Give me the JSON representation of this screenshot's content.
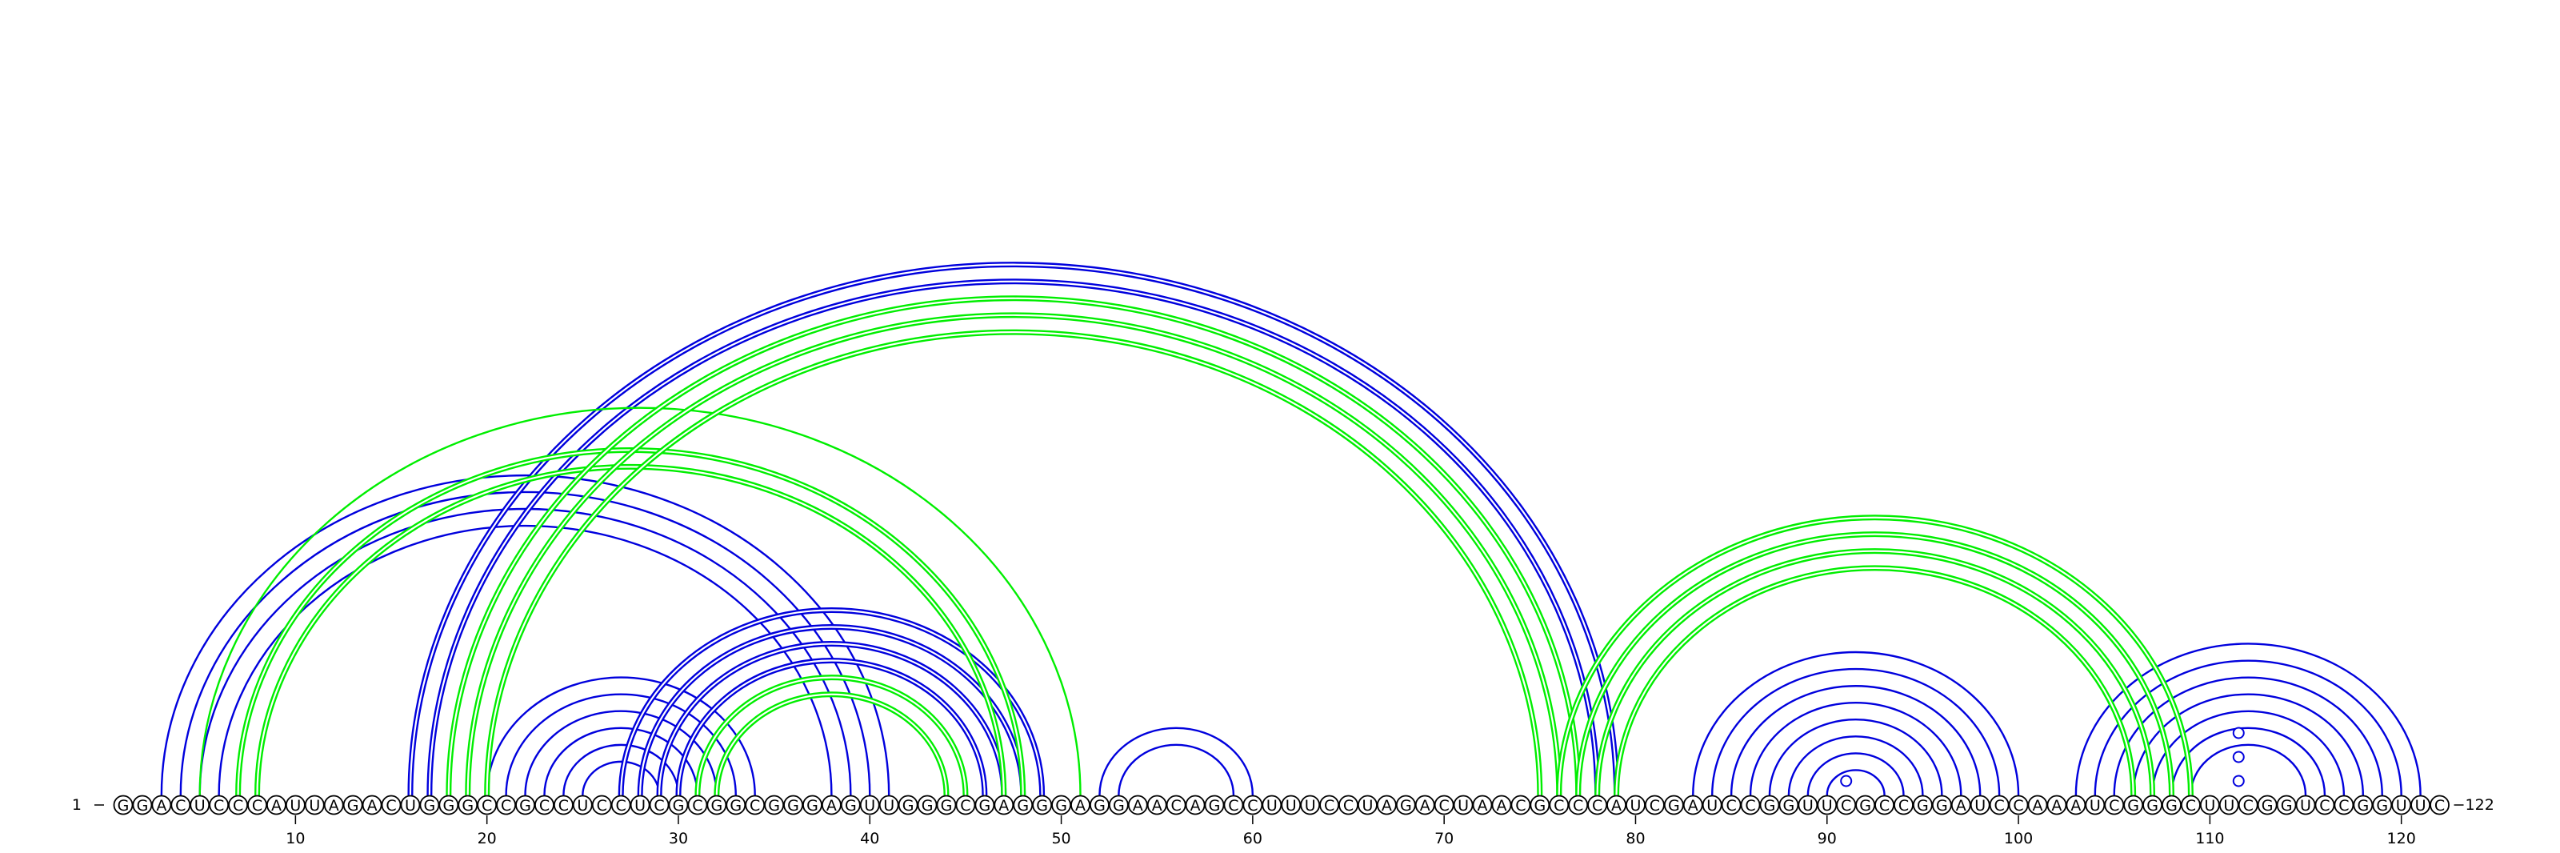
{
  "diagram": {
    "type": "rna-arc-diagram",
    "sequence": "GGACUCCCAUUAGACUGGGCCGCCUCCUCGCGGCGGGAGUUGGGCGAGGGAGGAACAGCCUUUCCUAGACUAACGCCCAUCGAUCCGGUUCGCCGGAUCCAAAUCGGGCUUCGGUCCGGUUC",
    "start_label": "1",
    "end_label": "122",
    "tick_labels": [
      "10",
      "20",
      "30",
      "40",
      "50",
      "60",
      "70",
      "80",
      "90",
      "100",
      "110",
      "120"
    ],
    "colors": {
      "blue": "#0000dd",
      "green": "#00ee00"
    },
    "arc_groups": [
      {
        "color": "blue",
        "style": "thin",
        "opening": [
          3,
          4,
          5,
          6
        ],
        "closing": [
          41,
          40,
          39,
          38
        ]
      },
      {
        "color": "blue",
        "style": "double",
        "opening": [
          16,
          17
        ],
        "closing": [
          79,
          78
        ]
      },
      {
        "color": "blue",
        "style": "thin",
        "opening": [
          20,
          21,
          22,
          23,
          24,
          25
        ],
        "closing": [
          34,
          33,
          32,
          31,
          30,
          29
        ]
      },
      {
        "color": "blue",
        "style": "double",
        "opening": [
          27,
          28,
          29,
          30
        ],
        "closing": [
          49,
          48,
          47,
          46
        ]
      },
      {
        "color": "blue",
        "style": "thin",
        "opening": [
          52,
          53
        ],
        "closing": [
          60,
          59
        ]
      },
      {
        "color": "blue",
        "style": "thin",
        "opening": [
          83,
          84,
          85,
          86,
          87,
          88,
          89,
          90
        ],
        "closing": [
          100,
          99,
          98,
          97,
          96,
          95,
          94,
          93
        ]
      },
      {
        "color": "blue",
        "style": "thin",
        "opening": [
          103,
          104,
          105,
          106,
          107,
          108,
          109
        ],
        "closing": [
          121,
          120,
          119,
          118,
          117,
          116,
          115
        ]
      },
      {
        "color": "green",
        "style": "thin",
        "opening": [
          5
        ],
        "closing": [
          51
        ]
      },
      {
        "color": "green",
        "style": "double",
        "opening": [
          7,
          8
        ],
        "closing": [
          48,
          47
        ]
      },
      {
        "color": "green",
        "style": "double",
        "opening": [
          18,
          19,
          20
        ],
        "closing": [
          77,
          76,
          75
        ]
      },
      {
        "color": "green",
        "style": "double",
        "opening": [
          31,
          32
        ],
        "closing": [
          45,
          44
        ]
      },
      {
        "color": "green",
        "style": "double",
        "opening": [
          76,
          77,
          78,
          79
        ],
        "closing": [
          109,
          108,
          107,
          106
        ]
      }
    ],
    "loop_markers": [
      91,
      112,
      112,
      112
    ]
  }
}
